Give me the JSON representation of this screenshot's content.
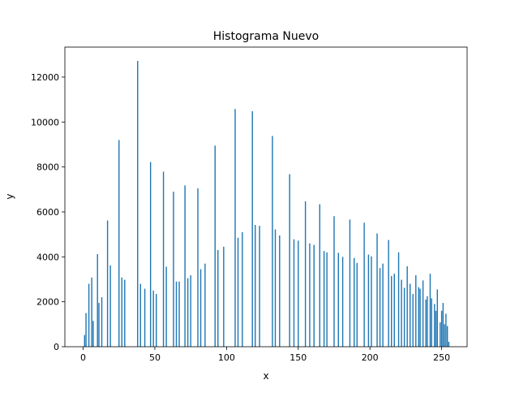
{
  "chart_data": {
    "type": "bar",
    "title": "Histograma Nuevo",
    "xlabel": "x",
    "ylabel": "y",
    "xlim": [
      -12.75,
      267.75
    ],
    "ylim": [
      0,
      13335
    ],
    "x_ticks": [
      0,
      50,
      100,
      150,
      200,
      250
    ],
    "y_ticks": [
      0,
      2000,
      4000,
      6000,
      8000,
      10000,
      12000
    ],
    "grid": false,
    "bar_color": "#1f77b4",
    "bar_width": 0.8,
    "series": [
      {
        "x": [
          1,
          2,
          4,
          6,
          7,
          10,
          11,
          13,
          17,
          19,
          25,
          27,
          29,
          38,
          40,
          43,
          47,
          49,
          51,
          56,
          58,
          63,
          65,
          67,
          71,
          73,
          75,
          80,
          82,
          85,
          92,
          94,
          98,
          106,
          108,
          111,
          118,
          120,
          123,
          132,
          134,
          137,
          144,
          147,
          150,
          155,
          158,
          161,
          165,
          168,
          170,
          175,
          178,
          181,
          186,
          189,
          191,
          196,
          199,
          201,
          205,
          207,
          209,
          213,
          215,
          217,
          220,
          222,
          224,
          226,
          228,
          230,
          232,
          234,
          235,
          237,
          239,
          240,
          242,
          243,
          245,
          246,
          247,
          249,
          250,
          251,
          252,
          253,
          254,
          255
        ],
        "values": [
          520,
          1500,
          2800,
          3080,
          1150,
          4120,
          1950,
          2200,
          5620,
          3620,
          9200,
          3080,
          2980,
          12720,
          2800,
          2580,
          8220,
          2500,
          2350,
          7790,
          3560,
          6900,
          2900,
          2900,
          7180,
          3050,
          3180,
          7050,
          3450,
          3700,
          8950,
          4300,
          4450,
          10580,
          4850,
          5100,
          10480,
          5420,
          5380,
          9380,
          5220,
          4950,
          7680,
          4780,
          4720,
          6470,
          4600,
          4530,
          6340,
          4260,
          4200,
          5810,
          4180,
          4000,
          5660,
          3950,
          3730,
          5520,
          4100,
          4020,
          5040,
          3500,
          3700,
          4750,
          3150,
          3250,
          4200,
          2980,
          2620,
          3580,
          2800,
          2350,
          3180,
          2650,
          2580,
          2950,
          2100,
          2250,
          3250,
          2150,
          1900,
          1600,
          2550,
          1080,
          1600,
          1950,
          1000,
          1470,
          920,
          220
        ]
      }
    ]
  }
}
